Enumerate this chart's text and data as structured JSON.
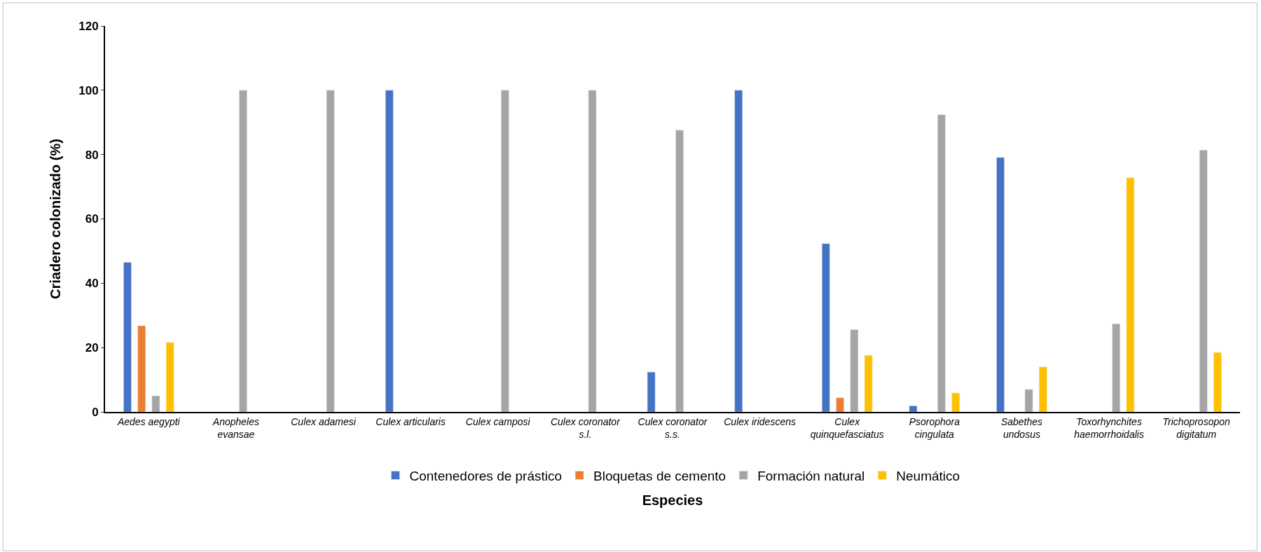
{
  "chart_data": {
    "type": "bar",
    "xlabel": "Especies",
    "ylabel": "Criadero colonizado (%)",
    "categories": [
      "Aedes aegypti",
      "Anopheles\nevansae",
      "Culex adamesi",
      "Culex articularis",
      "Culex camposi",
      "Culex coronator\ns.l.",
      "Culex coronator\ns.s.",
      "Culex iridescens",
      "Culex\nquinquefasciatus",
      "Psorophora\ncingulata",
      "Sabethes\nundosus",
      "Toxorhynchites\nhaemorrhoidalis",
      "Trichoprosopon\ndigitatum"
    ],
    "series": [
      {
        "name": "Contenedores de prástico",
        "color": "#4472c4",
        "values": [
          46.5,
          null,
          null,
          100,
          null,
          null,
          12.4,
          100,
          52.3,
          1.9,
          79.1,
          null,
          null
        ]
      },
      {
        "name": "Bloquetas de cemento",
        "color": "#ed7d31",
        "values": [
          26.8,
          null,
          null,
          null,
          null,
          null,
          null,
          null,
          4.4,
          null,
          null,
          null,
          null
        ]
      },
      {
        "name": "Formación natural",
        "color": "#a5a5a5",
        "values": [
          5,
          100,
          100,
          null,
          100,
          100,
          87.6,
          null,
          25.6,
          92.4,
          7,
          27.4,
          81.4
        ]
      },
      {
        "name": "Neumático",
        "color": "#ffc000",
        "values": [
          21.6,
          null,
          null,
          null,
          null,
          null,
          null,
          null,
          17.6,
          5.9,
          14,
          72.8,
          18.5
        ]
      }
    ],
    "ylim": [
      0,
      120
    ],
    "yticks": [
      0,
      20,
      40,
      60,
      80,
      100,
      120
    ],
    "legend": "bottom"
  }
}
